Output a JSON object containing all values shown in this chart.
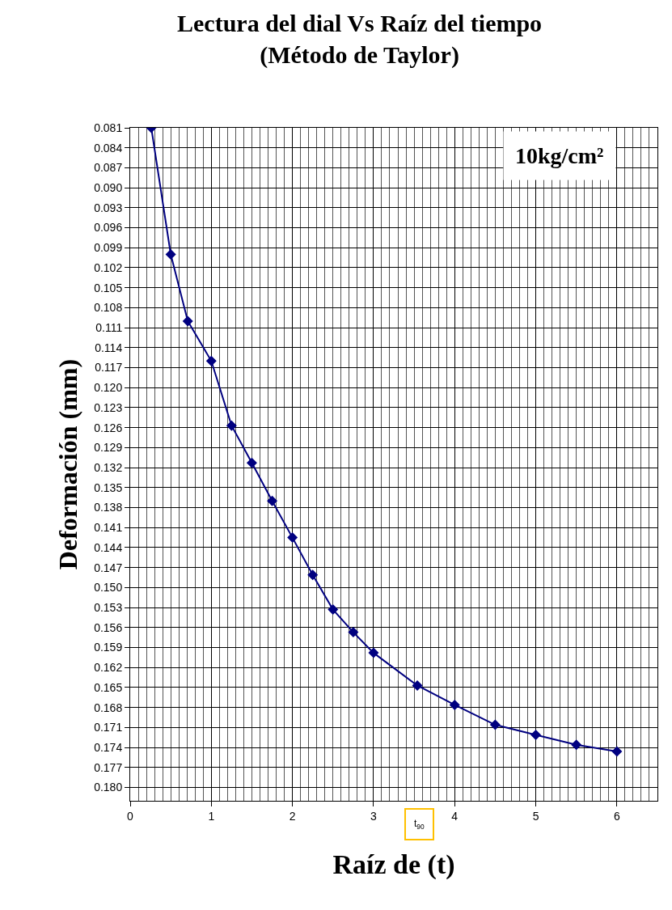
{
  "chart_data": {
    "type": "line",
    "title": "Lectura del dial Vs Raíz del tiempo\n(Método de Taylor)",
    "xlabel": "Raíz de (t)",
    "ylabel": "Deformación (mm)",
    "annotations": [
      "10kg/cm²",
      "t$_{90}$"
    ],
    "x": [
      0.26,
      0.5,
      0.71,
      1.0,
      1.25,
      1.5,
      1.75,
      2.0,
      2.25,
      2.5,
      2.75,
      3.0,
      3.54,
      4.0,
      4.5,
      5.0,
      5.5,
      6.0
    ],
    "series": [
      {
        "color": "#000080",
        "values": [
          0.081,
          0.1,
          0.11,
          0.116,
          0.1257,
          0.1313,
          0.137,
          0.1425,
          0.1481,
          0.1533,
          0.1567,
          0.1598,
          0.1647,
          0.1676,
          0.1706,
          0.1721,
          0.1736,
          0.1746
        ]
      }
    ],
    "marker": "diamond",
    "line_style": "solid",
    "xlim": [
      0,
      6.5
    ],
    "xticks": [
      0,
      1,
      2,
      3,
      4,
      5,
      6
    ],
    "ylim": [
      0.182,
      0.081
    ],
    "yticks": [
      0.081,
      0.084,
      0.087,
      {
        "value": 0.09,
        "label": "0.090"
      },
      0.093,
      0.096,
      0.099,
      0.102,
      0.105,
      0.108,
      0.111,
      0.114,
      0.117,
      {
        "value": 0.12,
        "label": "0.120"
      },
      0.123,
      0.126,
      0.129,
      0.132,
      0.135,
      0.138,
      0.141,
      0.144,
      0.147,
      {
        "value": 0.15,
        "label": "0.150"
      },
      0.153,
      0.156,
      0.159,
      0.162,
      0.165,
      0.168,
      0.171,
      0.174,
      0.177,
      {
        "value": 0.18,
        "label": "0.180"
      }
    ],
    "grid": true
  }
}
